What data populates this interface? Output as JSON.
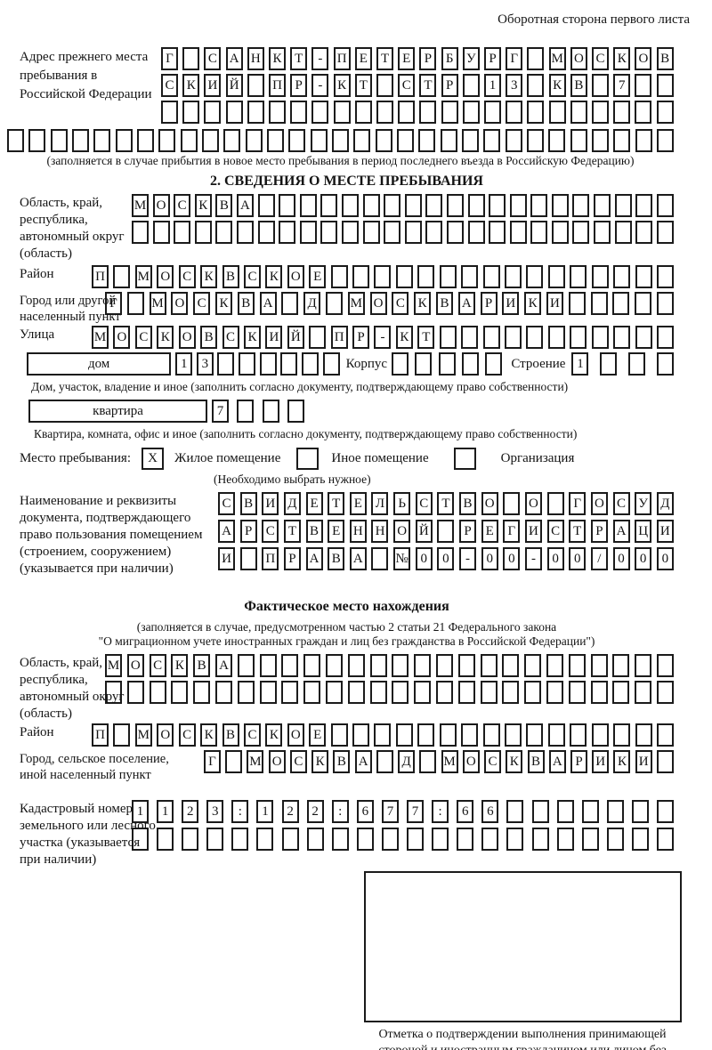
{
  "page": {
    "header_note": "Оборотная сторона первого листа",
    "section2_title": "2. СВЕДЕНИЯ О МЕСТЕ ПРЕБЫВАНИЯ",
    "factual_title": "Фактическое место нахождения"
  },
  "prev_address": {
    "label": "Адрес прежнего места пребывания в Российской Федерации",
    "row1": "Г САНКТ-ПЕТЕРБУРГ МОСКОВ",
    "row2": "СКИЙ ПР-КТ СТР 13 КВ 7  ",
    "row3": "                        ",
    "row4": "                               ",
    "caption": "(заполняется в случае прибытия в новое место пребывания в период последнего въезда в Российскую Федерацию)"
  },
  "section2": {
    "oblast": {
      "label": "Область, край, республика, автономный округ (область)",
      "row1": "МОСКВА                    ",
      "row2": "                          "
    },
    "rayon": {
      "label": "Район",
      "row": "П МОСКВСКОЕ                "
    },
    "gorod": {
      "label": "Город или другой населенный пункт",
      "row": "Г МОСКВА Д МОСКВАРИКИ     "
    },
    "ulitsa": {
      "label": "Улица",
      "row": "МОСКОВСКИЙ ПР-КТ           "
    },
    "dom": {
      "label": "дом",
      "boxes": "13      ",
      "korpus_label": "Корпус",
      "korpus_boxes": "     ",
      "stroenie_label": "Строение",
      "stroenie_boxes": "1   ",
      "caption": "Дом, участок, владение и иное (заполнить согласно документу, подтверждающему право собственности)"
    },
    "kvartira": {
      "label": "квартира",
      "boxes": "7   ",
      "caption": "Квартира, комната, офис и иное (заполнить согласно документу, подтверждающему право собственности)"
    },
    "mesto": {
      "label": "Место пребывания:",
      "opt1": {
        "label": "Жилое помещение",
        "check": "X"
      },
      "opt2": {
        "label": "Иное помещение",
        "check": ""
      },
      "opt3": {
        "label": "Организация",
        "check": ""
      },
      "note": "(Необходимо выбрать нужное)"
    },
    "document": {
      "label": "Наименование и реквизиты документа, подтверждающего право пользования помещением (строением, сооружением) (указывается при наличии)",
      "row1": "СВИДЕТЕЛЬСТВО О ГОСУД",
      "row2": "АРСТВЕННОЙ РЕГИСТРАЦИ",
      "row3": "И ПРАВА №00-00-00/000"
    }
  },
  "factual": {
    "caption_line1": "(заполняется в случае, предусмотренном частью 2 статьи 21 Федерального закона",
    "caption_line2": "\"О миграционном учете иностранных граждан и лиц без гражданства в Российской Федерации\")",
    "oblast": {
      "label": "Область, край, республика, автономный округ (область)",
      "row1": "МОСКВА                    ",
      "row2": "                          "
    },
    "rayon": {
      "label": "Район",
      "row": "П МОСКВСКОЕ                "
    },
    "gorod": {
      "label": "Город, сельское поселение, иной населенный пункт",
      "row": "Г МОСКВА Д МОСКВАРИКИ "
    },
    "kadastr": {
      "label": "Кадастровый номер земельного или лесного участка (указывается при наличии)",
      "row1": "1123:122:677:66       ",
      "row2": "                      "
    },
    "stamp_caption": "Отметка о подтверждении выполнения принимающей стороной и иностранным гражданином или лицом без гражданства действий, необходимых для его постановки на учет по месту пребывания"
  }
}
